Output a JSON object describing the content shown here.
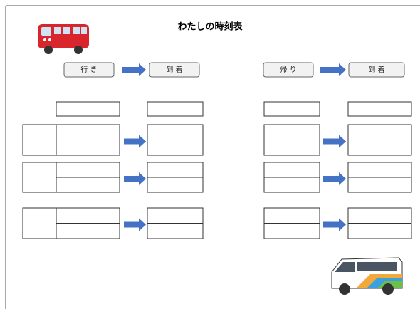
{
  "header": {
    "title": "わたしの時刻表"
  },
  "outbound": {
    "depart": "行 き",
    "arrive": "到 着"
  },
  "return": {
    "depart": "帰 り",
    "arrive": "到 着"
  }
}
